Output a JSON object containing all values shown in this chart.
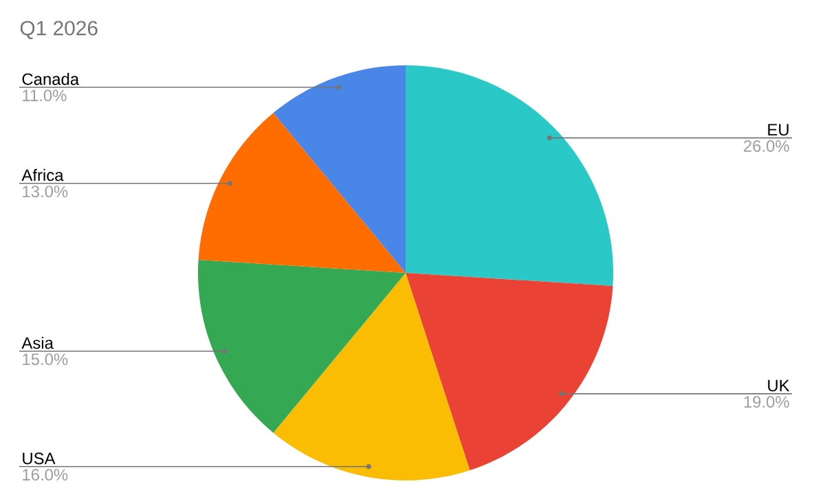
{
  "chart_data": {
    "type": "pie",
    "title": "Q1 2026",
    "categories": [
      "EU",
      "UK",
      "USA",
      "Asia",
      "Africa",
      "Canada"
    ],
    "values": [
      26,
      19,
      16,
      15,
      13,
      11
    ],
    "colors": [
      "#2ac9c7",
      "#ea4335",
      "#fbbc04",
      "#34a853",
      "#ff6d01",
      "#4a86e8"
    ],
    "value_labels": [
      "26.0%",
      "19.0%",
      "16.0%",
      "15.0%",
      "13.0%",
      "11.0%"
    ]
  }
}
